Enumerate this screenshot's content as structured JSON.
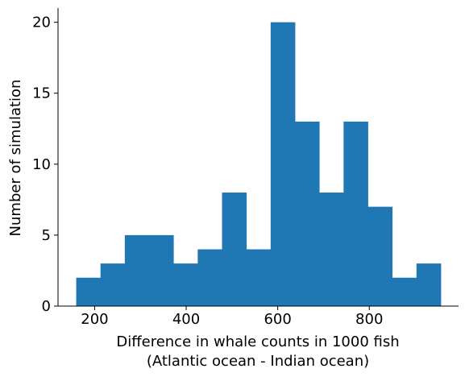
{
  "chart_data": {
    "type": "bar",
    "subtype": "histogram",
    "bin_width": 53.1,
    "bins": [
      {
        "x0": 159.7,
        "x1": 212.8,
        "count": 2
      },
      {
        "x0": 212.8,
        "x1": 265.9,
        "count": 3
      },
      {
        "x0": 265.9,
        "x1": 319.0,
        "count": 5
      },
      {
        "x0": 319.0,
        "x1": 372.1,
        "count": 5
      },
      {
        "x0": 372.1,
        "x1": 425.2,
        "count": 3
      },
      {
        "x0": 425.2,
        "x1": 478.3,
        "count": 4
      },
      {
        "x0": 478.3,
        "x1": 531.4,
        "count": 8
      },
      {
        "x0": 531.4,
        "x1": 584.5,
        "count": 4
      },
      {
        "x0": 584.5,
        "x1": 637.6,
        "count": 20
      },
      {
        "x0": 637.6,
        "x1": 690.7,
        "count": 13
      },
      {
        "x0": 690.7,
        "x1": 743.8,
        "count": 8
      },
      {
        "x0": 743.8,
        "x1": 796.9,
        "count": 13
      },
      {
        "x0": 796.9,
        "x1": 850.0,
        "count": 7
      },
      {
        "x0": 850.0,
        "x1": 903.1,
        "count": 2
      },
      {
        "x0": 903.1,
        "x1": 956.2,
        "count": 3
      }
    ],
    "xlabel_line1": "Difference in whale counts in 1000 fish",
    "xlabel_line2": "(Atlantic ocean - Indian ocean)",
    "ylabel": "Number of simulation",
    "xlim": [
      120,
      995
    ],
    "ylim": [
      0,
      21
    ],
    "xticks": [
      200,
      400,
      600,
      800
    ],
    "yticks": [
      0,
      5,
      10,
      15,
      20
    ],
    "bar_color": "#1f77b4",
    "grid": false,
    "legend": "none"
  }
}
